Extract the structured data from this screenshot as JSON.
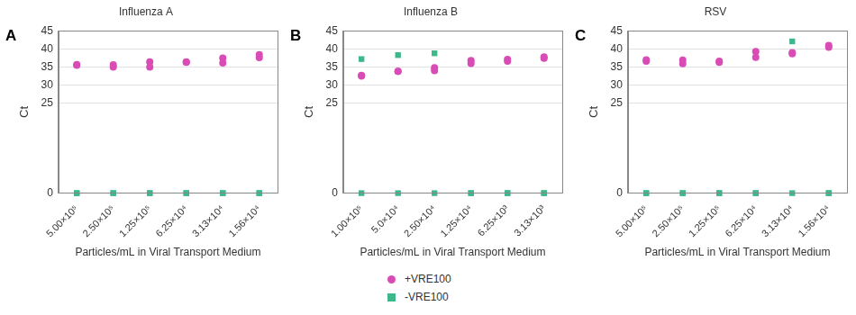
{
  "chart_data": [
    {
      "type": "scatter",
      "panel_label": "A",
      "title": "Influenza A",
      "x_label": "Particles/mL in Viral Transport Medium",
      "y_label": "Ct",
      "categories": [
        "5.00×10⁵",
        "2.50×10⁵",
        "1.25×10⁵",
        "6.25×10⁴",
        "3.13×10⁴",
        "1.56×10⁴"
      ],
      "ylim": [
        0,
        45
      ],
      "yticks": [
        0,
        25,
        30,
        35,
        40,
        45
      ],
      "grid": true,
      "legend": "bottom",
      "series": [
        {
          "name": "+VRE100",
          "color": "#d94cb5",
          "marker": "circle",
          "values": [
            [
              35.5,
              35.7
            ],
            [
              35.0,
              35.6
            ],
            [
              35.0,
              36.4
            ],
            [
              36.3,
              36.4
            ],
            [
              36.1,
              37.5
            ],
            [
              37.6,
              38.4
            ]
          ]
        },
        {
          "name": "-VRE100",
          "color": "#3db88a",
          "marker": "square",
          "values": [
            [
              0,
              0
            ],
            [
              0,
              0
            ],
            [
              0,
              0
            ],
            [
              0,
              0
            ],
            [
              0,
              0
            ],
            [
              0,
              0
            ]
          ]
        }
      ]
    },
    {
      "type": "scatter",
      "panel_label": "B",
      "title": "Influenza B",
      "x_label": "Particles/mL in Viral Transport Medium",
      "y_label": "Ct",
      "categories": [
        "1.00×10⁵",
        "5.0×10⁴",
        "2.50×10⁴",
        "1.25×10⁴",
        "6.25×10³",
        "3.13×10³"
      ],
      "ylim": [
        0,
        45
      ],
      "yticks": [
        0,
        25,
        30,
        35,
        40,
        45
      ],
      "grid": true,
      "legend": "bottom",
      "series": [
        {
          "name": "+VRE100",
          "color": "#d94cb5",
          "marker": "circle",
          "values": [
            [
              32.5,
              32.7
            ],
            [
              33.8,
              33.8
            ],
            [
              34.0,
              34.8
            ],
            [
              36.0,
              36.8
            ],
            [
              36.6,
              37.1
            ],
            [
              37.4,
              37.8
            ]
          ]
        },
        {
          "name": "-VRE100",
          "color": "#3db88a",
          "marker": "square",
          "values": [
            [
              37.2,
              0
            ],
            [
              38.3,
              0
            ],
            [
              38.8,
              0
            ],
            [
              0,
              0
            ],
            [
              0,
              0
            ],
            [
              0,
              0
            ]
          ]
        }
      ]
    },
    {
      "type": "scatter",
      "panel_label": "C",
      "title": "RSV",
      "x_label": "Particles/mL in Viral Transport Medium",
      "y_label": "Ct",
      "categories": [
        "5.00×10⁵",
        "2.50×10⁵",
        "1.25×10⁵",
        "6.25×10⁴",
        "3.13×10⁴",
        "1.56×10⁴"
      ],
      "ylim": [
        0,
        45
      ],
      "yticks": [
        0,
        25,
        30,
        35,
        40,
        45
      ],
      "grid": true,
      "legend": "bottom",
      "series": [
        {
          "name": "+VRE100",
          "color": "#d94cb5",
          "marker": "circle",
          "values": [
            [
              36.6,
              37.0
            ],
            [
              35.9,
              36.9
            ],
            [
              36.3,
              36.6
            ],
            [
              37.7,
              39.3
            ],
            [
              38.7,
              39.0
            ],
            [
              40.5,
              41.0
            ]
          ]
        },
        {
          "name": "-VRE100",
          "color": "#3db88a",
          "marker": "square",
          "values": [
            [
              0,
              0
            ],
            [
              0,
              0
            ],
            [
              0,
              0
            ],
            [
              0,
              0
            ],
            [
              42.1,
              0
            ],
            [
              0,
              0
            ]
          ]
        }
      ]
    }
  ]
}
